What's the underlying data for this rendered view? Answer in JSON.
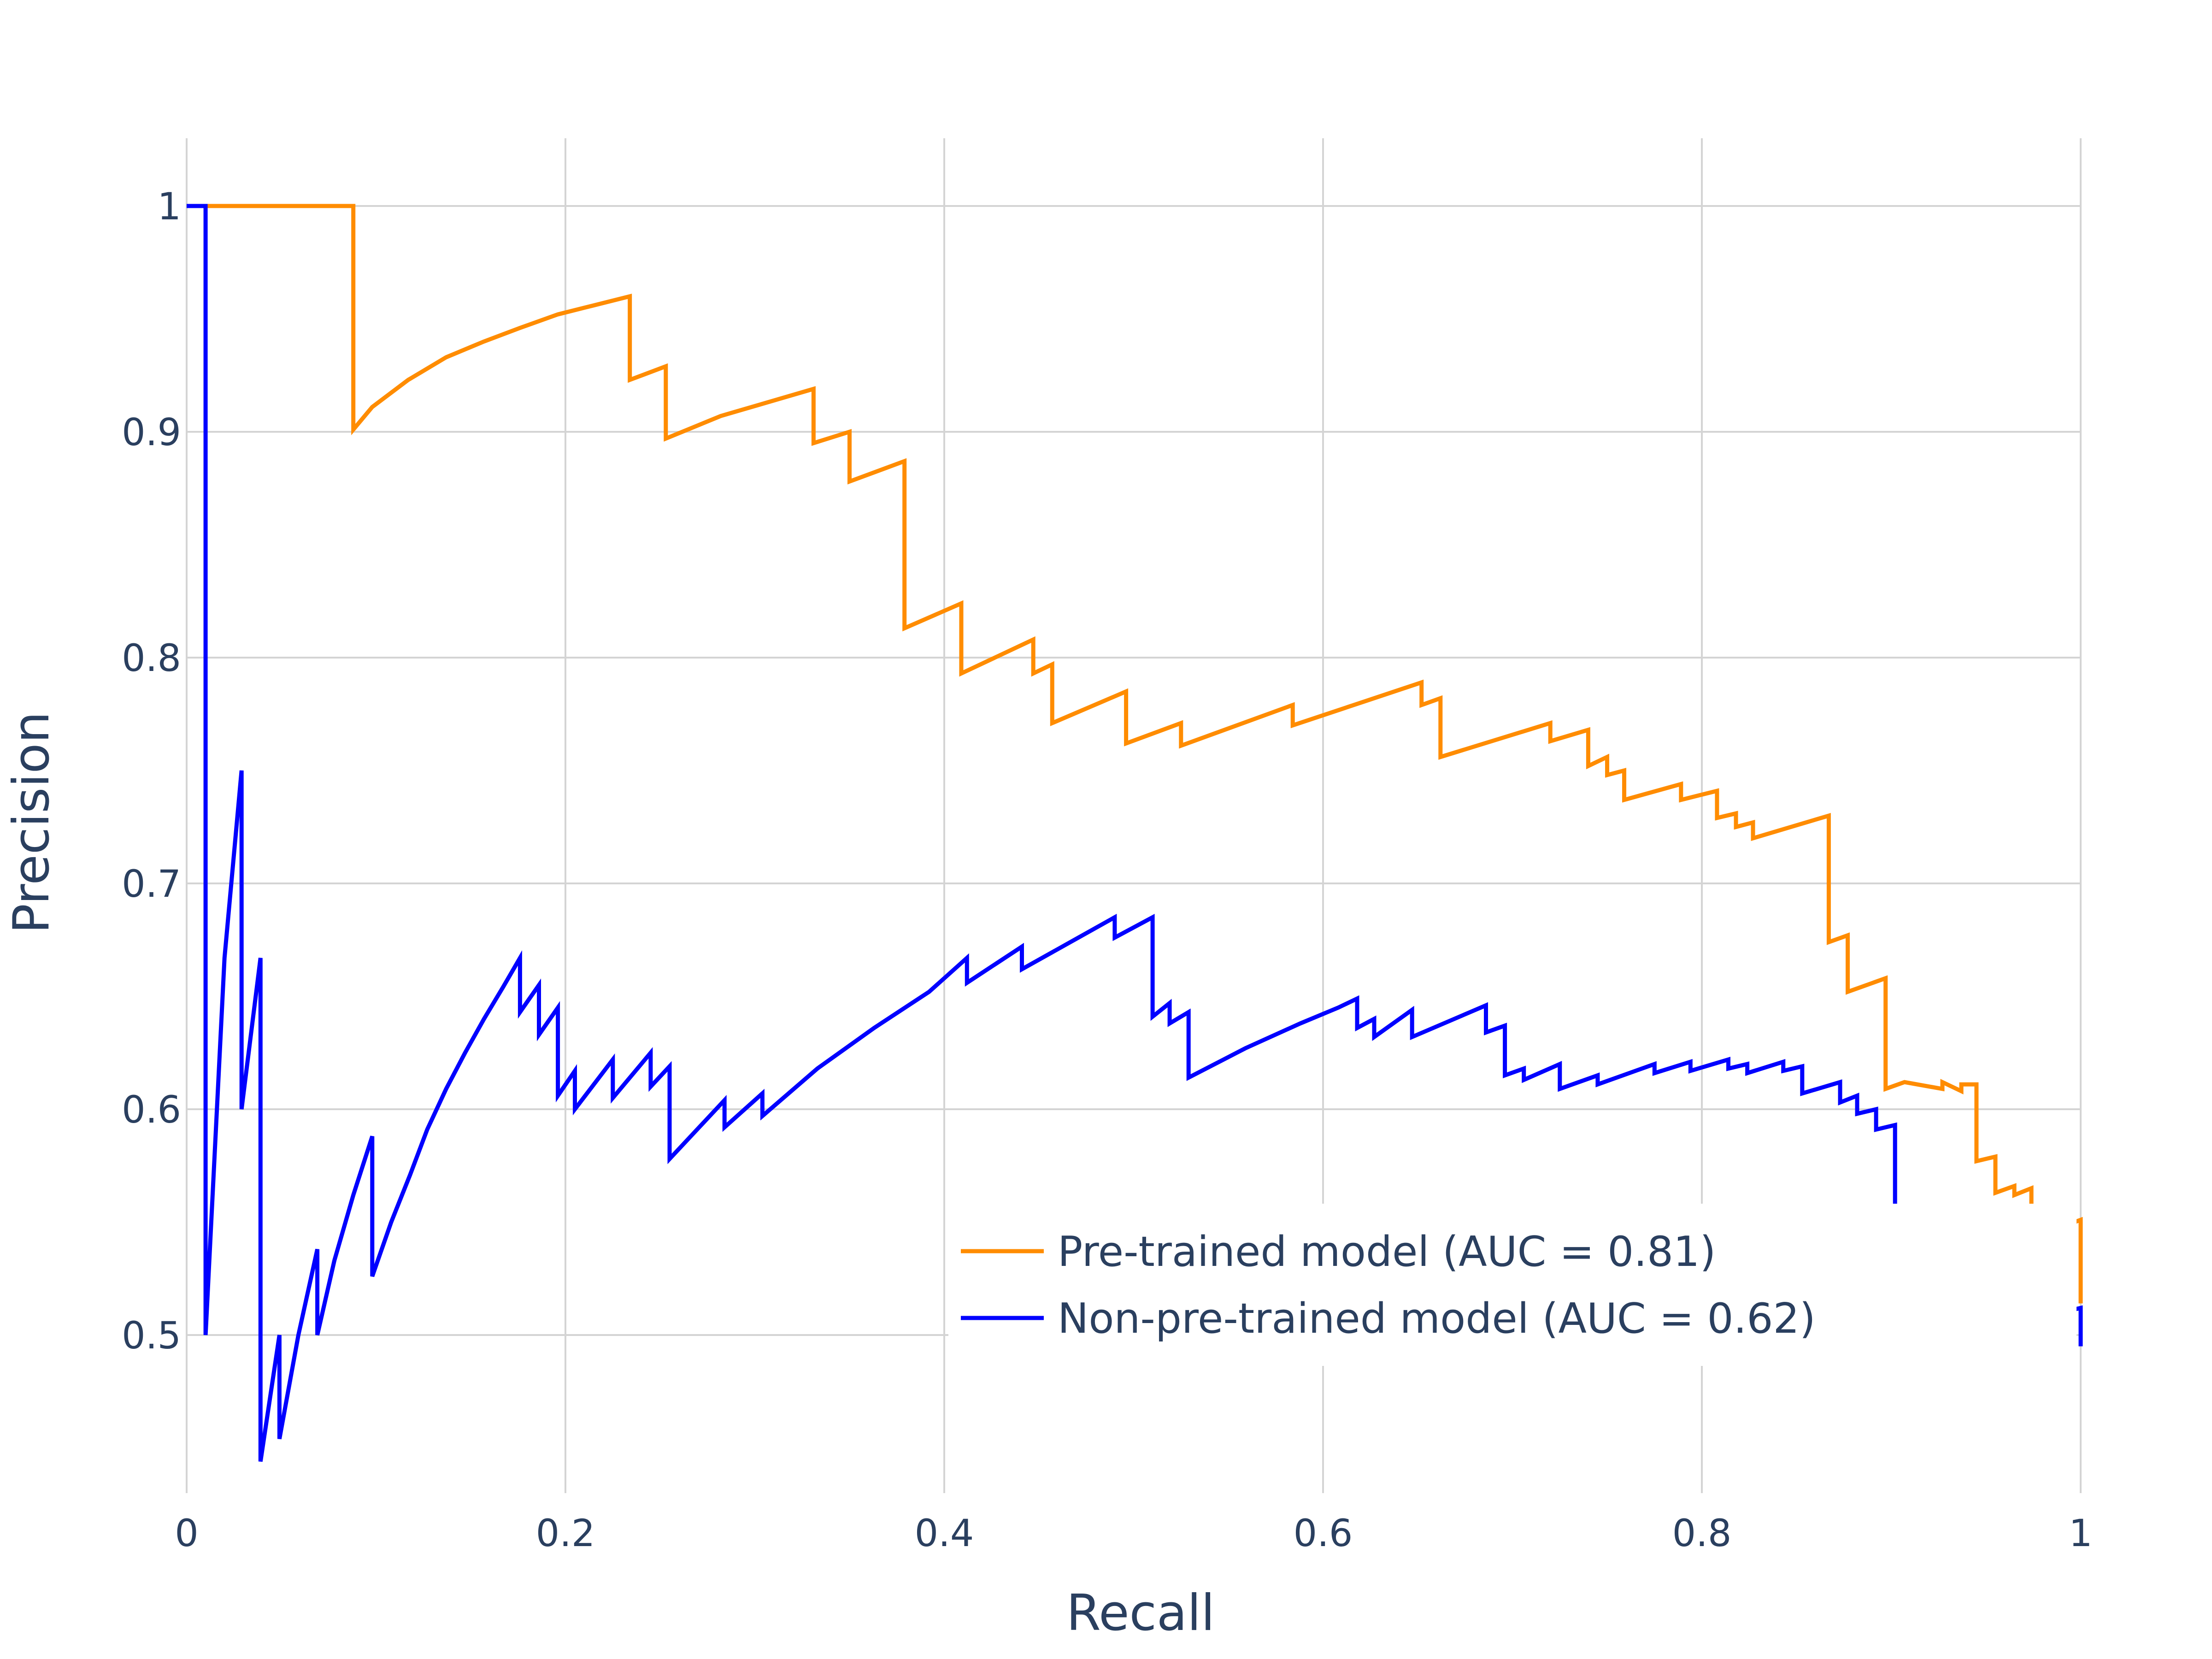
{
  "chart_data": {
    "type": "line",
    "xlabel": "Recall",
    "ylabel": "Precision",
    "xlim": [
      0,
      1
    ],
    "ylim": [
      0.43,
      1.03
    ],
    "grid": true,
    "legend_position": "bottom-right",
    "x_ticks": [
      {
        "value": 0,
        "label": "0"
      },
      {
        "value": 0.2,
        "label": "0.2"
      },
      {
        "value": 0.4,
        "label": "0.4"
      },
      {
        "value": 0.6,
        "label": "0.6"
      },
      {
        "value": 0.8,
        "label": "0.8"
      },
      {
        "value": 1,
        "label": "1"
      }
    ],
    "y_ticks": [
      {
        "value": 0.5,
        "label": "0.5"
      },
      {
        "value": 0.6,
        "label": "0.6"
      },
      {
        "value": 0.7,
        "label": "0.7"
      },
      {
        "value": 0.8,
        "label": "0.8"
      },
      {
        "value": 0.9,
        "label": "0.9"
      },
      {
        "value": 1,
        "label": "1"
      }
    ],
    "series": [
      {
        "name": "Pre-trained model (AUC = 0.81)",
        "color": "#ff8c00",
        "points": [
          [
            0,
            1
          ],
          [
            0.088,
            1
          ],
          [
            0.088,
            0.901
          ],
          [
            0.098,
            0.911
          ],
          [
            0.117,
            0.923
          ],
          [
            0.137,
            0.933
          ],
          [
            0.157,
            0.94
          ],
          [
            0.176,
            0.946
          ],
          [
            0.196,
            0.952
          ],
          [
            0.215,
            0.956
          ],
          [
            0.234,
            0.96
          ],
          [
            0.234,
            0.923
          ],
          [
            0.253,
            0.929
          ],
          [
            0.253,
            0.897
          ],
          [
            0.282,
            0.907
          ],
          [
            0.331,
            0.919
          ],
          [
            0.331,
            0.895
          ],
          [
            0.35,
            0.9
          ],
          [
            0.35,
            0.878
          ],
          [
            0.379,
            0.887
          ],
          [
            0.379,
            0.813
          ],
          [
            0.409,
            0.824
          ],
          [
            0.409,
            0.793
          ],
          [
            0.447,
            0.808
          ],
          [
            0.447,
            0.793
          ],
          [
            0.457,
            0.797
          ],
          [
            0.457,
            0.771
          ],
          [
            0.496,
            0.785
          ],
          [
            0.496,
            0.762
          ],
          [
            0.525,
            0.771
          ],
          [
            0.525,
            0.761
          ],
          [
            0.584,
            0.779
          ],
          [
            0.584,
            0.77
          ],
          [
            0.652,
            0.789
          ],
          [
            0.652,
            0.779
          ],
          [
            0.662,
            0.782
          ],
          [
            0.662,
            0.756
          ],
          [
            0.72,
            0.771
          ],
          [
            0.72,
            0.763
          ],
          [
            0.74,
            0.768
          ],
          [
            0.74,
            0.752
          ],
          [
            0.75,
            0.756
          ],
          [
            0.75,
            0.748
          ],
          [
            0.759,
            0.75
          ],
          [
            0.759,
            0.737
          ],
          [
            0.789,
            0.744
          ],
          [
            0.789,
            0.737
          ],
          [
            0.808,
            0.741
          ],
          [
            0.808,
            0.729
          ],
          [
            0.818,
            0.731
          ],
          [
            0.818,
            0.725
          ],
          [
            0.827,
            0.727
          ],
          [
            0.827,
            0.72
          ],
          [
            0.867,
            0.73
          ],
          [
            0.867,
            0.674
          ],
          [
            0.877,
            0.677
          ],
          [
            0.877,
            0.652
          ],
          [
            0.897,
            0.658
          ],
          [
            0.897,
            0.609
          ],
          [
            0.907,
            0.612
          ],
          [
            0.927,
            0.609
          ],
          [
            0.927,
            0.612
          ],
          [
            0.937,
            0.608
          ],
          [
            0.937,
            0.611
          ],
          [
            0.945,
            0.611
          ],
          [
            0.945,
            0.577
          ],
          [
            0.955,
            0.579
          ],
          [
            0.955,
            0.563
          ],
          [
            0.965,
            0.566
          ],
          [
            0.965,
            0.562
          ],
          [
            0.974,
            0.565
          ],
          [
            0.974,
            0.543
          ],
          [
            1,
            0.551
          ],
          [
            1,
            0.514
          ]
        ]
      },
      {
        "name": "Non-pre-trained model (AUC = 0.62)",
        "color": "#0000ff",
        "points": [
          [
            0,
            1
          ],
          [
            0.01,
            1
          ],
          [
            0.01,
            0.5
          ],
          [
            0.02,
            0.667
          ],
          [
            0.029,
            0.75
          ],
          [
            0.029,
            0.6
          ],
          [
            0.039,
            0.667
          ],
          [
            0.039,
            0.444
          ],
          [
            0.049,
            0.5
          ],
          [
            0.049,
            0.454
          ],
          [
            0.059,
            0.5
          ],
          [
            0.069,
            0.538
          ],
          [
            0.069,
            0.5
          ],
          [
            0.078,
            0.533
          ],
          [
            0.088,
            0.562
          ],
          [
            0.098,
            0.588
          ],
          [
            0.098,
            0.526
          ],
          [
            0.108,
            0.55
          ],
          [
            0.118,
            0.571
          ],
          [
            0.127,
            0.591
          ],
          [
            0.137,
            0.609
          ],
          [
            0.147,
            0.625
          ],
          [
            0.157,
            0.64
          ],
          [
            0.167,
            0.654
          ],
          [
            0.176,
            0.667
          ],
          [
            0.176,
            0.643
          ],
          [
            0.186,
            0.655
          ],
          [
            0.186,
            0.633
          ],
          [
            0.196,
            0.645
          ],
          [
            0.196,
            0.606
          ],
          [
            0.205,
            0.617
          ],
          [
            0.205,
            0.6
          ],
          [
            0.225,
            0.622
          ],
          [
            0.225,
            0.605
          ],
          [
            0.245,
            0.625
          ],
          [
            0.245,
            0.61
          ],
          [
            0.255,
            0.619
          ],
          [
            0.255,
            0.578
          ],
          [
            0.284,
            0.604
          ],
          [
            0.284,
            0.592
          ],
          [
            0.304,
            0.607
          ],
          [
            0.304,
            0.597
          ],
          [
            0.333,
            0.618
          ],
          [
            0.363,
            0.636
          ],
          [
            0.392,
            0.652
          ],
          [
            0.412,
            0.667
          ],
          [
            0.412,
            0.656
          ],
          [
            0.441,
            0.672
          ],
          [
            0.441,
            0.662
          ],
          [
            0.49,
            0.685
          ],
          [
            0.49,
            0.676
          ],
          [
            0.51,
            0.685
          ],
          [
            0.51,
            0.641
          ],
          [
            0.519,
            0.647
          ],
          [
            0.519,
            0.638
          ],
          [
            0.529,
            0.643
          ],
          [
            0.529,
            0.614
          ],
          [
            0.559,
            0.627
          ],
          [
            0.588,
            0.638
          ],
          [
            0.608,
            0.645
          ],
          [
            0.618,
            0.649
          ],
          [
            0.618,
            0.636
          ],
          [
            0.627,
            0.64
          ],
          [
            0.627,
            0.632
          ],
          [
            0.647,
            0.644
          ],
          [
            0.647,
            0.632
          ],
          [
            0.686,
            0.646
          ],
          [
            0.686,
            0.634
          ],
          [
            0.696,
            0.637
          ],
          [
            0.696,
            0.615
          ],
          [
            0.706,
            0.618
          ],
          [
            0.706,
            0.613
          ],
          [
            0.725,
            0.62
          ],
          [
            0.725,
            0.609
          ],
          [
            0.745,
            0.615
          ],
          [
            0.745,
            0.611
          ],
          [
            0.775,
            0.62
          ],
          [
            0.775,
            0.616
          ],
          [
            0.794,
            0.621
          ],
          [
            0.794,
            0.617
          ],
          [
            0.814,
            0.622
          ],
          [
            0.814,
            0.618
          ],
          [
            0.824,
            0.62
          ],
          [
            0.824,
            0.616
          ],
          [
            0.843,
            0.621
          ],
          [
            0.843,
            0.617
          ],
          [
            0.853,
            0.619
          ],
          [
            0.853,
            0.607
          ],
          [
            0.873,
            0.612
          ],
          [
            0.873,
            0.603
          ],
          [
            0.882,
            0.606
          ],
          [
            0.882,
            0.598
          ],
          [
            0.892,
            0.6
          ],
          [
            0.892,
            0.591
          ],
          [
            0.902,
            0.593
          ],
          [
            0.902,
            0.537
          ],
          [
            0.912,
            0.54
          ],
          [
            0.912,
            0.534
          ],
          [
            0.922,
            0.536
          ],
          [
            0.922,
            0.533
          ],
          [
            0.941,
            0.538
          ],
          [
            0.941,
            0.532
          ],
          [
            0.971,
            0.541
          ],
          [
            0.971,
            0.535
          ],
          [
            0.98,
            0.537
          ],
          [
            0.98,
            0.531
          ],
          [
            0.99,
            0.533
          ],
          [
            0.99,
            0.51
          ],
          [
            1,
            0.512
          ],
          [
            1,
            0.495
          ]
        ]
      }
    ]
  }
}
